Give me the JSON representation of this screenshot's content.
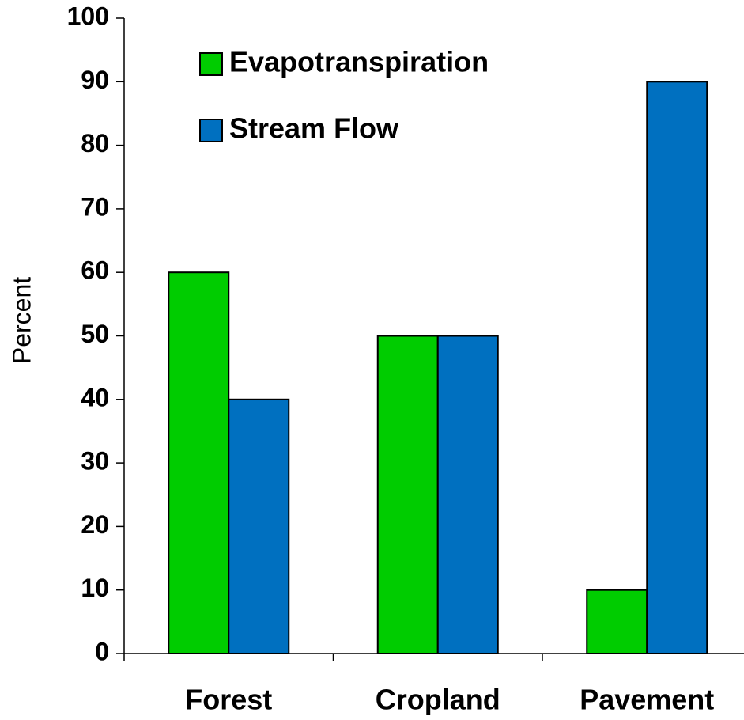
{
  "chart_data": {
    "type": "bar",
    "y_label": "Percent",
    "categories": [
      "Forest",
      "Cropland",
      "Pavement"
    ],
    "series": [
      {
        "name": "Evapotranspiration",
        "color": "#00cc00",
        "values": [
          60,
          50,
          10
        ]
      },
      {
        "name": "Stream Flow",
        "color": "#0070c0",
        "values": [
          40,
          50,
          90
        ]
      }
    ],
    "ylim": [
      0,
      100
    ],
    "yticks": [
      0,
      10,
      20,
      30,
      40,
      50,
      60,
      70,
      80,
      90,
      100
    ],
    "grid": false,
    "legend": "upper left"
  }
}
